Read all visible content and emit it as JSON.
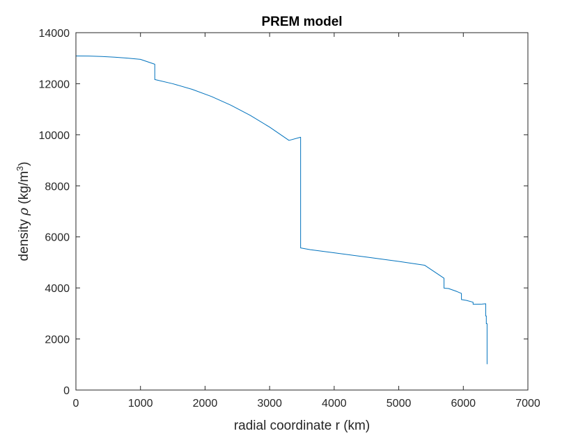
{
  "chart_data": {
    "type": "line",
    "title": "PREM model",
    "xlabel": "radial coordinate r (km)",
    "ylabel": {
      "prefix": "density ",
      "symbol": "ρ",
      "units_open": " (kg/m",
      "superscript": "3",
      "units_close": ")"
    },
    "xlim": [
      0,
      7000
    ],
    "ylim": [
      0,
      14000
    ],
    "xticks": [
      0,
      1000,
      2000,
      3000,
      4000,
      5000,
      6000,
      7000
    ],
    "yticks": [
      0,
      2000,
      4000,
      6000,
      8000,
      10000,
      12000,
      14000
    ],
    "grid": false,
    "line_color": "#0072bd",
    "series": [
      {
        "x": [
          0,
          200,
          400,
          600,
          800,
          1000,
          1221.5,
          1221.5,
          1500,
          1800,
          2100,
          2400,
          2700,
          3000,
          3300,
          3480,
          3480,
          3630,
          4000,
          4500,
          5000,
          5400,
          5701,
          5701,
          5771,
          5771,
          5900,
          5971,
          5971,
          6050,
          6151,
          6151,
          6250,
          6291,
          6346.6,
          6346.6,
          6356,
          6356,
          6368,
          6368,
          6371
        ],
        "y": [
          13088,
          13083,
          13067,
          13040,
          13003,
          12955,
          12764,
          12166,
          12000,
          11780,
          11500,
          11160,
          10760,
          10300,
          9780,
          9903,
          5566,
          5500,
          5375,
          5210,
          5040,
          4890,
          4380,
          3992,
          3975,
          3976,
          3860,
          3785,
          3543,
          3510,
          3440,
          3360,
          3363,
          3366,
          3381,
          2900,
          2900,
          2600,
          2600,
          1020,
          1020
        ]
      }
    ]
  }
}
